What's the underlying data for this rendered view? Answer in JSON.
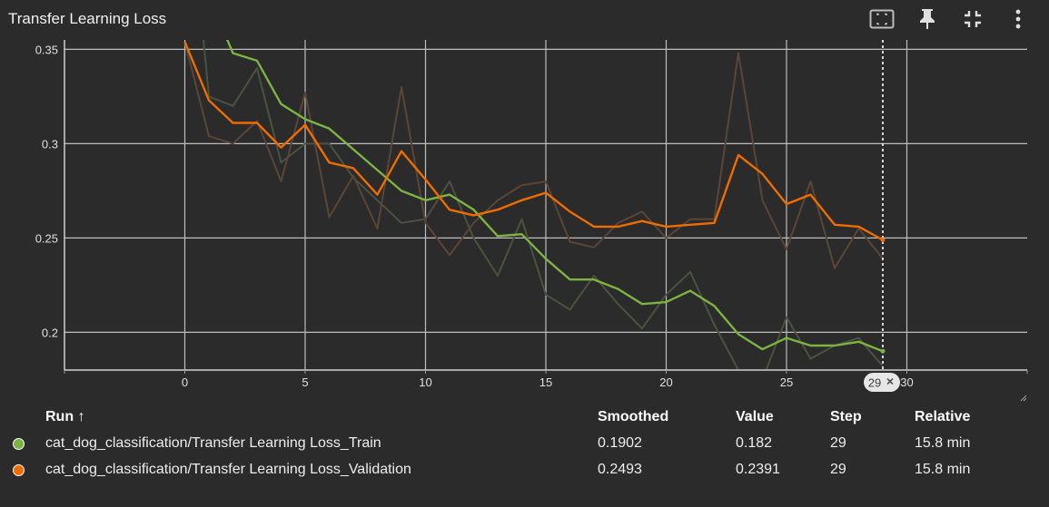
{
  "title": "Transfer Learning Loss",
  "toolbar": {
    "icons": [
      "fit-to-data-icon",
      "pin-icon",
      "collapse-icon",
      "more-vert-icon"
    ]
  },
  "colors": {
    "background": "#2b2b2b",
    "grid": "#bdbdbd",
    "train": "#7cb342",
    "validation": "#ef6c00",
    "train_raw": "#4a5340",
    "validation_raw": "#5a4636"
  },
  "chart_data": {
    "type": "line",
    "title": "Transfer Learning Loss",
    "xlabel": "",
    "ylabel": "",
    "xlim": [
      -5,
      35
    ],
    "ylim": [
      0.18,
      0.355
    ],
    "x_ticks": [
      0,
      5,
      10,
      15,
      20,
      25,
      30
    ],
    "y_ticks": [
      0.2,
      0.25,
      0.3,
      0.35
    ],
    "y_tick_labels": [
      "0.2",
      "0.25",
      "0.3",
      "0.35"
    ],
    "grid": true,
    "hover_step": 29,
    "hover_label": "29",
    "series": [
      {
        "name": "cat_dog_classification/Transfer Learning Loss_Train",
        "x": [
          0,
          1,
          2,
          3,
          4,
          5,
          6,
          7,
          8,
          9,
          10,
          11,
          12,
          13,
          14,
          15,
          16,
          17,
          18,
          19,
          20,
          21,
          22,
          23,
          24,
          25,
          26,
          27,
          28,
          29
        ],
        "smoothed": [
          0.46,
          0.378,
          0.348,
          0.344,
          0.321,
          0.313,
          0.308,
          0.297,
          0.286,
          0.275,
          0.27,
          0.273,
          0.265,
          0.251,
          0.252,
          0.239,
          0.228,
          0.228,
          0.223,
          0.215,
          0.216,
          0.222,
          0.214,
          0.199,
          0.191,
          0.197,
          0.193,
          0.193,
          0.195,
          0.19
        ],
        "raw": [
          0.46,
          0.325,
          0.32,
          0.34,
          0.29,
          0.3,
          0.3,
          0.282,
          0.27,
          0.258,
          0.26,
          0.28,
          0.25,
          0.23,
          0.26,
          0.22,
          0.212,
          0.23,
          0.215,
          0.202,
          0.22,
          0.232,
          0.204,
          0.18,
          0.175,
          0.208,
          0.186,
          0.193,
          0.197,
          0.182
        ]
      },
      {
        "name": "cat_dog_classification/Transfer Learning Loss_Validation",
        "x": [
          0,
          1,
          2,
          3,
          4,
          5,
          6,
          7,
          8,
          9,
          10,
          11,
          12,
          13,
          14,
          15,
          16,
          17,
          18,
          19,
          20,
          21,
          22,
          23,
          24,
          25,
          26,
          27,
          28,
          29
        ],
        "smoothed": [
          0.354,
          0.323,
          0.311,
          0.311,
          0.298,
          0.31,
          0.29,
          0.287,
          0.273,
          0.296,
          0.281,
          0.265,
          0.262,
          0.265,
          0.27,
          0.274,
          0.264,
          0.256,
          0.256,
          0.259,
          0.256,
          0.257,
          0.258,
          0.294,
          0.284,
          0.268,
          0.273,
          0.257,
          0.256,
          0.249
        ],
        "raw": [
          0.354,
          0.304,
          0.3,
          0.312,
          0.28,
          0.327,
          0.261,
          0.283,
          0.255,
          0.33,
          0.258,
          0.241,
          0.258,
          0.27,
          0.278,
          0.28,
          0.248,
          0.245,
          0.258,
          0.264,
          0.25,
          0.26,
          0.26,
          0.348,
          0.27,
          0.244,
          0.28,
          0.234,
          0.255,
          0.239
        ]
      }
    ]
  },
  "table": {
    "headers": {
      "run": "Run ↑",
      "smoothed": "Smoothed",
      "value": "Value",
      "step": "Step",
      "relative": "Relative"
    },
    "rows": [
      {
        "run": "cat_dog_classification/Transfer Learning Loss_Train",
        "smoothed": "0.1902",
        "value": "0.182",
        "step": "29",
        "relative": "15.8 min"
      },
      {
        "run": "cat_dog_classification/Transfer Learning Loss_Validation",
        "smoothed": "0.2493",
        "value": "0.2391",
        "step": "29",
        "relative": "15.8 min"
      }
    ]
  }
}
